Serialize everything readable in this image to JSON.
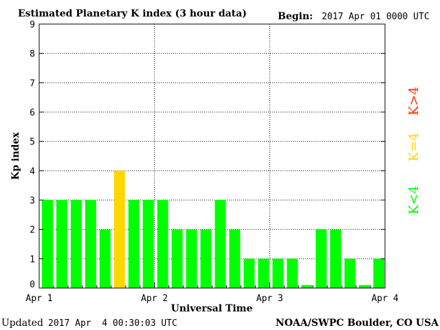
{
  "header": {
    "title": "Estimated Planetary K index (3 hour data)",
    "begin_label": "Begin:",
    "begin_value": "2017 Apr 01 0000 UTC"
  },
  "footer": {
    "updated_label": "Updated",
    "updated_value": "2017 Apr  4 00:30:03 UTC",
    "credit": "NOAA/SWPC Boulder, CO USA"
  },
  "legend": {
    "below": "K<4",
    "equal": "K=4",
    "above": "K>4"
  },
  "colors": {
    "below": "#00ff00",
    "equal": "#ffd700",
    "above": "#ff3300",
    "axis": "#000000",
    "grid": "#000000"
  },
  "chart_data": {
    "type": "bar",
    "xlabel": "Universal Time",
    "ylabel": "Kp index",
    "ylim": [
      0,
      9
    ],
    "y_ticks": [
      "0",
      "1",
      "2",
      "3",
      "4",
      "5",
      "6",
      "7",
      "8",
      "9"
    ],
    "x_ticks": [
      "Apr 1",
      "Apr 2",
      "Apr 3",
      "Apr 4"
    ],
    "grid": true,
    "values": [
      3,
      3,
      3,
      3,
      2,
      4,
      3,
      3,
      3,
      2,
      2,
      2,
      3,
      2,
      1,
      1,
      1,
      1,
      0.1,
      2,
      2,
      1,
      0.1,
      1
    ]
  }
}
